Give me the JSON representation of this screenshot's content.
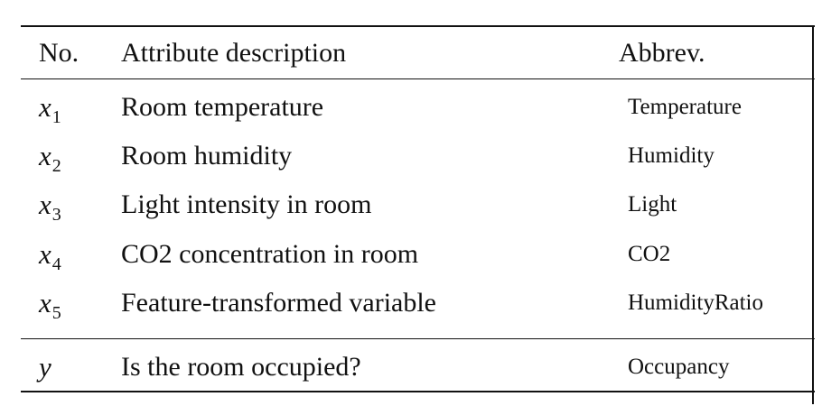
{
  "table": {
    "headers": {
      "no": "No.",
      "description": "Attribute description",
      "abbrev": "Abbrev."
    },
    "rows": [
      {
        "var": "x",
        "sub": "1",
        "description": "Room temperature",
        "abbrev": "Temperature"
      },
      {
        "var": "x",
        "sub": "2",
        "description": "Room humidity",
        "abbrev": "Humidity"
      },
      {
        "var": "x",
        "sub": "3",
        "description": "Light intensity in room",
        "abbrev": "Light"
      },
      {
        "var": "x",
        "sub": "4",
        "description": "CO2 concentration in room",
        "abbrev": "CO2"
      },
      {
        "var": "x",
        "sub": "5",
        "description": "Feature-transformed variable",
        "abbrev": "HumidityRatio"
      }
    ],
    "target": {
      "var": "y",
      "description": "Is the room occupied?",
      "abbrev": "Occupancy"
    }
  }
}
